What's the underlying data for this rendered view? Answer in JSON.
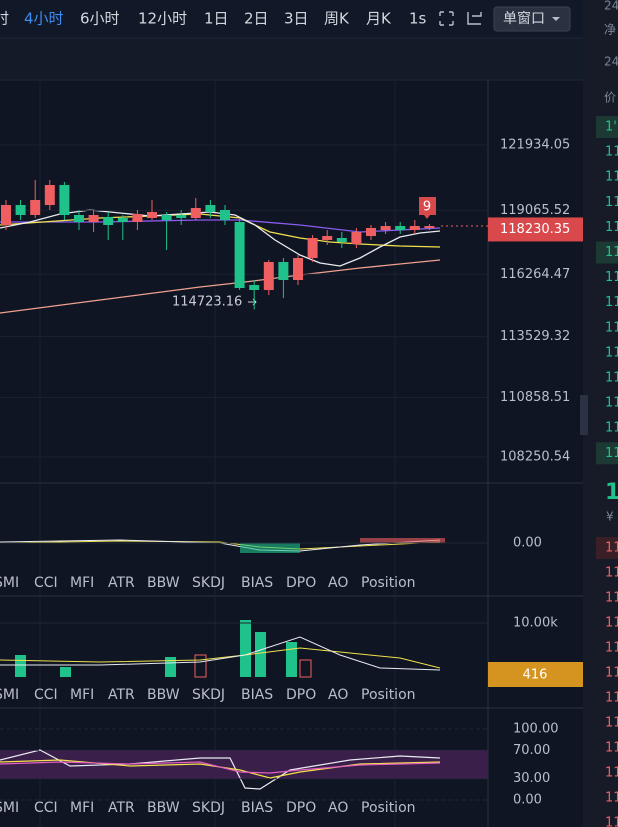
{
  "toolbar": {
    "items": [
      "时",
      "4小时",
      "6小时",
      "12小时",
      "1日",
      "2日",
      "3日",
      "周K",
      "月K",
      "1s"
    ],
    "active": 1,
    "window_button": "单窗口"
  },
  "main": {
    "ylim": [
      107241,
      124785
    ],
    "yticks": [
      121934.05,
      119065.52,
      116264.47,
      113529.32,
      110858.51,
      108250.54
    ],
    "last_price": 118230.35,
    "low_label": 114723.16,
    "marker": "9",
    "up_color": "#ef5f61",
    "down_color": "#1fc28b",
    "candles": {
      "open": [
        118425,
        119302,
        118864,
        119302,
        120180,
        118864,
        118557,
        118776,
        118732,
        118557,
        118732,
        118864,
        118864,
        118732,
        119302,
        119083,
        118557,
        115794,
        115574,
        116802,
        116013,
        116978,
        117767,
        117855,
        117592,
        117943,
        118206,
        118381,
        118206,
        118294
      ],
      "high": [
        119522,
        119522,
        120399,
        120399,
        120311,
        119083,
        119083,
        118995,
        118864,
        119083,
        119522,
        118995,
        119083,
        119609,
        119522,
        119302,
        118732,
        116013,
        116890,
        116978,
        117110,
        117987,
        118206,
        118118,
        118294,
        118425,
        118557,
        118557,
        118644,
        118470
      ],
      "low": [
        118206,
        118644,
        118732,
        119083,
        118644,
        118206,
        118118,
        117767,
        117767,
        118206,
        118644,
        117329,
        118425,
        118644,
        118732,
        118425,
        115574,
        114723.16,
        115355,
        115223,
        115794,
        116802,
        117548,
        117416,
        117416,
        117767,
        118030,
        118030,
        118030,
        118206
      ],
      "close": [
        119302,
        118864,
        119522,
        120180,
        118864,
        118557,
        118864,
        118425,
        118557,
        118908,
        118995,
        118644,
        118732,
        119171,
        118995,
        118644,
        115662,
        115574,
        116802,
        116013,
        116978,
        117855,
        117943,
        117680,
        118118,
        118294,
        118381,
        118206,
        118381,
        118381
      ]
    }
  },
  "tabs": [
    "SMI",
    "CCI",
    "MFI",
    "ATR",
    "BBW",
    "SKDJ",
    "BIAS",
    "DPO",
    "AO",
    "Position"
  ],
  "panel_macd": {
    "yticks": [
      {
        "value": 0,
        "label": "0.00"
      }
    ]
  },
  "panel_volume": {
    "yticks": [
      {
        "value": 10000,
        "label": "10.00k"
      }
    ],
    "last_volume": 416
  },
  "panel_osc": {
    "yticks": [
      {
        "value": 100,
        "label": "100.00"
      },
      {
        "value": 70,
        "label": "70.00"
      },
      {
        "value": 30,
        "label": "30.00"
      },
      {
        "value": 0,
        "label": "0.00"
      }
    ]
  },
  "side": {
    "header": [
      "24",
      "净",
      "24",
      "价"
    ],
    "asks": [
      "1'",
      "11",
      "11",
      "11",
      "11",
      "11",
      "11",
      "11",
      "11",
      "11",
      "11",
      "11",
      "11",
      "11"
    ],
    "mid": [
      "1",
      "¥"
    ],
    "bids": [
      "11",
      "11",
      "11",
      "11",
      "11",
      "11",
      "11",
      "11",
      "11",
      "11",
      "11",
      "11"
    ]
  }
}
